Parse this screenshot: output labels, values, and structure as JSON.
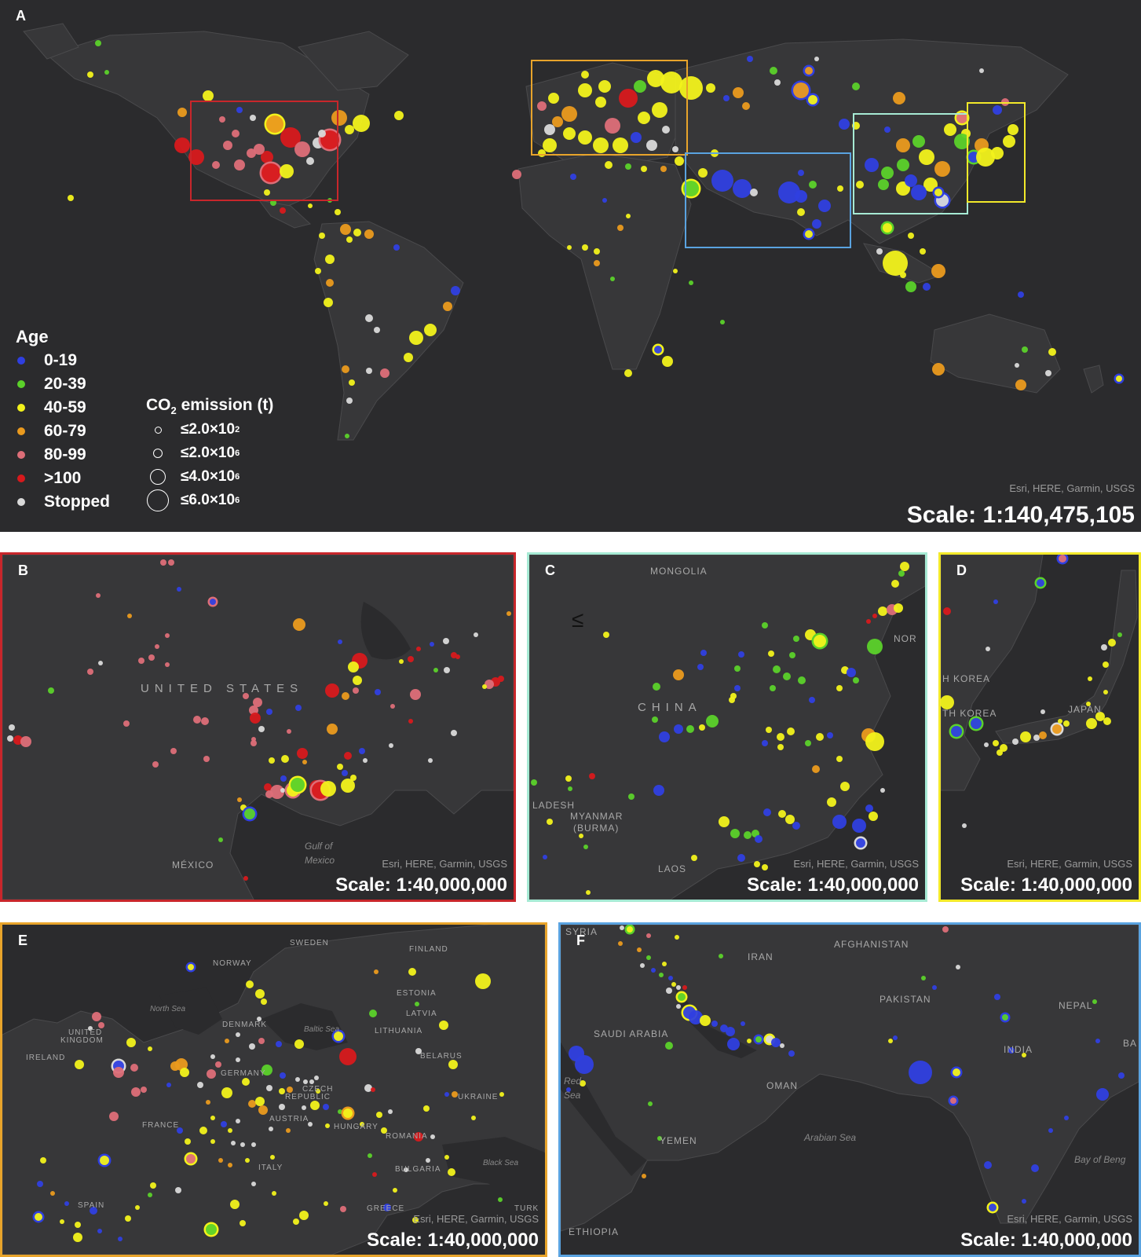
{
  "colors": {
    "background": "#2b2b2d",
    "land": "#373739",
    "border": "#4a4a4c"
  },
  "age_legend": {
    "title": "Age",
    "items": [
      {
        "label": "0-19",
        "color": "#2f3fe0"
      },
      {
        "label": "20-39",
        "color": "#5bd12a"
      },
      {
        "label": "40-59",
        "color": "#f2f21b"
      },
      {
        "label": "60-79",
        "color": "#ea9a1e"
      },
      {
        "label": "80-99",
        "color": "#dd6e78"
      },
      {
        "label": ">100",
        "color": "#d7191c"
      },
      {
        "label": "Stopped",
        "color": "#d9d9d9"
      }
    ]
  },
  "co2_legend": {
    "title_main": "CO",
    "title_sub": "2",
    "title_rest": " emission (t)",
    "items": [
      {
        "label": "≤2.0×10",
        "exp": "2"
      },
      {
        "label": "≤2.0×10",
        "exp": "6"
      },
      {
        "label": "≤4.0×10",
        "exp": "6"
      },
      {
        "label": "≤6.0×10",
        "exp": "6"
      }
    ]
  },
  "panels": {
    "A": {
      "label": "A",
      "scale": "Scale: 1:140,475,105",
      "attribution": "Esri, HERE, Garmin, USGS"
    },
    "B": {
      "label": "B",
      "scale": "Scale: 1:40,000,000",
      "attribution": "Esri, HERE, Garmin, USGS",
      "border": "#c8262b",
      "places": {
        "country": "UNITED STATES",
        "mexico": "MÉXICO",
        "gulf": "Gulf of Mexico"
      }
    },
    "C": {
      "label": "C",
      "scale": "Scale: 1:40,000,000",
      "attribution": "Esri, HERE, Garmin, USGS",
      "border": "#a6ead4",
      "places": {
        "mongolia": "MONGOLIA",
        "china": "CHINA",
        "ladesh": "LADESH",
        "myanmar": "MYANMAR",
        "burma": "(BURMA)",
        "laos": "LAOS",
        "nor": "NOR"
      }
    },
    "D": {
      "label": "D",
      "scale": "Scale: 1:40,000,000",
      "attribution": "Esri, HERE, Garmin, USGS",
      "border": "#f3e92a",
      "places": {
        "nkorea": "H KOREA",
        "skorea": "TH KOREA",
        "japan": "JAPAN"
      }
    },
    "E": {
      "label": "E",
      "scale": "Scale: 1:40,000,000",
      "attribution": "Esri, HERE, Garmin, USGS",
      "border": "#e8a42b",
      "places": {
        "sweden": "SWEDEN",
        "finland": "FINLAND",
        "norway": "NORWAY",
        "northsea": "North Sea",
        "estonia": "ESTONIA",
        "latvia": "LATVIA",
        "denmark": "DENMARK",
        "balticsea": "Baltic Sea",
        "lithuania": "LITHUANIA",
        "uk1": "UNITED",
        "uk2": "KINGDOM",
        "ireland": "IRELAND",
        "belarus": "BELARUS",
        "germany": "GERMANY",
        "czech1": "CZECH",
        "czech2": "REPUBLIC",
        "ukraine": "UKRAINE",
        "france": "FRANCE",
        "austria": "AUSTRIA",
        "hungary": "HUNGARY",
        "romania": "ROMANIA",
        "italy": "ITALY",
        "blacksea": "Black Sea",
        "bulgaria": "BULGARIA",
        "spain": "SPAIN",
        "greece": "GREECE",
        "turk": "TURK"
      }
    },
    "F": {
      "label": "F",
      "scale": "Scale: 1:40,000,000",
      "attribution": "Esri, HERE, Garmin, USGS",
      "border": "#5aa3e0",
      "places": {
        "syria": "SYRIA",
        "iran": "IRAN",
        "afghanistan": "AFGHANISTAN",
        "pakistan": "PAKISTAN",
        "nepal": "NEPAL",
        "saudi": "SAUDI ARABIA",
        "india": "INDIA",
        "redsea": "Red Sea",
        "oman": "OMAN",
        "yemen": "YEMEN",
        "arabiansea": "Arabian Sea",
        "bayofbengal": "Bay of Beng",
        "ethiopia": "ETHIOPIA",
        "ba": "BA"
      }
    }
  }
}
